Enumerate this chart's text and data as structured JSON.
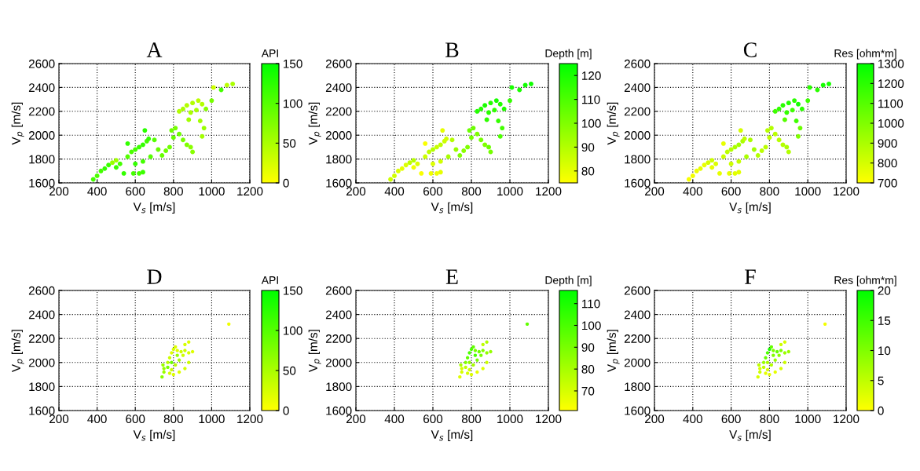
{
  "chart_data": [
    {
      "type": "scatter",
      "title": "A",
      "xlabel": "V$_{s}$ [m/s]",
      "ylabel": "V$_{p}$ [m/s]",
      "clabel": "API",
      "xlim": [
        200,
        1200
      ],
      "xticks": [
        200,
        400,
        600,
        800,
        1000,
        1200
      ],
      "ylim": [
        1600,
        2600
      ],
      "yticks": [
        1600,
        1800,
        2000,
        2200,
        2400,
        2600
      ],
      "grid": true,
      "marker": "circle",
      "clim": [
        0,
        150
      ],
      "cticks": [
        0,
        50,
        100,
        150
      ],
      "x": [
        380,
        400,
        420,
        440,
        460,
        480,
        500,
        520,
        540,
        500,
        560,
        580,
        600,
        620,
        640,
        660,
        560,
        650,
        670,
        700,
        590,
        620,
        640,
        600,
        640,
        680,
        720,
        740,
        760,
        780,
        800,
        810,
        790,
        830,
        850,
        870,
        890,
        900,
        830,
        850,
        870,
        900,
        930,
        950,
        920,
        890,
        880,
        940,
        960,
        950,
        970,
        1000,
        1010,
        1050,
        1080,
        1110
      ],
      "values": [
        1630,
        1660,
        1700,
        1720,
        1750,
        1770,
        1790,
        1760,
        1680,
        1730,
        1820,
        1860,
        1880,
        1900,
        1920,
        1950,
        1930,
        2040,
        1970,
        1960,
        1680,
        1680,
        1690,
        1760,
        1780,
        1820,
        1880,
        1830,
        1870,
        1900,
        1980,
        2060,
        2040,
        2010,
        1960,
        1920,
        1900,
        1860,
        2200,
        2220,
        2250,
        2270,
        2290,
        2260,
        2210,
        2190,
        2130,
        2120,
        2060,
        1990,
        2220,
        2290,
        2400,
        2380,
        2420,
        2430
      ],
      "cvalues": [
        110,
        105,
        110,
        120,
        115,
        60,
        55,
        110,
        120,
        115,
        100,
        105,
        110,
        115,
        120,
        110,
        120,
        125,
        120,
        100,
        110,
        110,
        115,
        120,
        110,
        100,
        90,
        90,
        85,
        85,
        90,
        80,
        85,
        85,
        80,
        75,
        70,
        70,
        45,
        50,
        45,
        45,
        40,
        45,
        50,
        50,
        55,
        55,
        60,
        55,
        70,
        80,
        30,
        110,
        40,
        50
      ]
    },
    {
      "type": "scatter",
      "title": "B",
      "xlabel": "V$_{s}$ [m/s]",
      "ylabel": "V$_{p}$ [m/s]",
      "clabel": "Depth [m]",
      "xlim": [
        200,
        1200
      ],
      "xticks": [
        200,
        400,
        600,
        800,
        1000,
        1200
      ],
      "ylim": [
        1600,
        2600
      ],
      "yticks": [
        1600,
        1800,
        2000,
        2200,
        2400,
        2600
      ],
      "grid": true,
      "marker": "circle",
      "clim": [
        75,
        125
      ],
      "cticks": [
        80,
        90,
        100,
        110,
        120
      ],
      "x": [
        380,
        400,
        420,
        440,
        460,
        480,
        500,
        520,
        540,
        500,
        560,
        580,
        600,
        620,
        640,
        660,
        560,
        650,
        670,
        700,
        590,
        620,
        640,
        600,
        640,
        680,
        720,
        740,
        760,
        780,
        800,
        810,
        790,
        830,
        850,
        870,
        890,
        900,
        830,
        850,
        870,
        900,
        930,
        950,
        920,
        890,
        880,
        940,
        960,
        950,
        970,
        1000,
        1010,
        1050,
        1080,
        1110
      ],
      "values": [
        1630,
        1660,
        1700,
        1720,
        1750,
        1770,
        1790,
        1760,
        1680,
        1730,
        1820,
        1860,
        1880,
        1900,
        1920,
        1950,
        1930,
        2040,
        1970,
        1960,
        1680,
        1680,
        1690,
        1760,
        1780,
        1820,
        1880,
        1830,
        1870,
        1900,
        1980,
        2060,
        2040,
        2010,
        1960,
        1920,
        1900,
        1860,
        2200,
        2220,
        2250,
        2270,
        2290,
        2260,
        2210,
        2190,
        2130,
        2120,
        2060,
        1990,
        2220,
        2290,
        2400,
        2380,
        2420,
        2430
      ],
      "cvalues": [
        85,
        84,
        82,
        80,
        82,
        88,
        90,
        82,
        76,
        78,
        85,
        88,
        90,
        86,
        88,
        85,
        76,
        80,
        84,
        90,
        78,
        78,
        80,
        82,
        84,
        92,
        95,
        100,
        98,
        100,
        102,
        104,
        104,
        100,
        102,
        100,
        104,
        102,
        118,
        118,
        120,
        118,
        120,
        118,
        116,
        117,
        116,
        115,
        112,
        110,
        118,
        115,
        120,
        120,
        122,
        122
      ]
    },
    {
      "type": "scatter",
      "title": "C",
      "xlabel": "V$_{s}$ [m/s]",
      "ylabel": "V$_{p}$ [m/s]",
      "clabel": "Res [ohm*m]",
      "xlim": [
        200,
        1200
      ],
      "xticks": [
        200,
        400,
        600,
        800,
        1000,
        1200
      ],
      "ylim": [
        1600,
        2600
      ],
      "yticks": [
        1600,
        1800,
        2000,
        2200,
        2400,
        2600
      ],
      "grid": true,
      "marker": "circle",
      "clim": [
        700,
        1300
      ],
      "cticks": [
        700,
        800,
        900,
        1000,
        1100,
        1200,
        1300
      ],
      "x": [
        380,
        400,
        420,
        440,
        460,
        480,
        500,
        520,
        540,
        500,
        560,
        580,
        600,
        620,
        640,
        660,
        560,
        650,
        670,
        700,
        590,
        620,
        640,
        600,
        640,
        680,
        720,
        740,
        760,
        780,
        800,
        810,
        790,
        830,
        850,
        870,
        890,
        900,
        830,
        850,
        870,
        900,
        930,
        950,
        920,
        890,
        880,
        940,
        960,
        950,
        970,
        1000,
        1010,
        1050,
        1080,
        1110
      ],
      "values": [
        1630,
        1660,
        1700,
        1720,
        1750,
        1770,
        1790,
        1760,
        1680,
        1730,
        1820,
        1860,
        1880,
        1900,
        1920,
        1950,
        1930,
        2040,
        1970,
        1960,
        1680,
        1680,
        1690,
        1760,
        1780,
        1820,
        1880,
        1830,
        1870,
        1900,
        1980,
        2060,
        2040,
        2010,
        1960,
        1920,
        1900,
        1860,
        2200,
        2220,
        2250,
        2270,
        2290,
        2260,
        2210,
        2190,
        2130,
        2120,
        2060,
        1990,
        2220,
        2290,
        2400,
        2380,
        2420,
        2430
      ],
      "cvalues": [
        720,
        730,
        740,
        760,
        750,
        800,
        820,
        780,
        760,
        760,
        820,
        860,
        880,
        900,
        920,
        900,
        760,
        800,
        850,
        900,
        760,
        770,
        770,
        820,
        840,
        900,
        920,
        880,
        860,
        860,
        850,
        880,
        870,
        860,
        870,
        880,
        900,
        880,
        1150,
        1180,
        1200,
        1220,
        1200,
        1250,
        1150,
        1180,
        1100,
        1150,
        1050,
        1000,
        1200,
        1150,
        1200,
        1200,
        1250,
        1250
      ]
    },
    {
      "type": "scatter",
      "title": "D",
      "xlabel": "V$_{s}$ [m/s]",
      "ylabel": "V$_{p}$ [m/s]",
      "clabel": "API",
      "xlim": [
        200,
        1200
      ],
      "xticks": [
        200,
        400,
        600,
        800,
        1000,
        1200
      ],
      "ylim": [
        1600,
        2600
      ],
      "yticks": [
        1600,
        1800,
        2000,
        2200,
        2400,
        2600
      ],
      "grid": true,
      "marker": "circle",
      "clim": [
        0,
        150
      ],
      "cticks": [
        0,
        50,
        100,
        150
      ],
      "x": [
        740,
        750,
        745,
        770,
        780,
        790,
        800,
        810,
        820,
        840,
        860,
        880,
        900,
        860,
        880,
        850,
        830,
        810,
        790,
        780,
        800,
        830,
        860,
        880,
        770,
        790,
        750,
        820,
        1090
      ],
      "values": [
        1880,
        1920,
        1980,
        2000,
        2040,
        2080,
        2110,
        2130,
        2100,
        2090,
        2100,
        2080,
        2090,
        2150,
        2170,
        2060,
        2020,
        1980,
        1940,
        1910,
        1900,
        1920,
        1950,
        2000,
        1960,
        2000,
        1950,
        2060,
        2320
      ],
      "cvalues": [
        70,
        60,
        60,
        40,
        30,
        20,
        25,
        20,
        20,
        30,
        30,
        25,
        20,
        25,
        20,
        30,
        50,
        40,
        30,
        25,
        20,
        20,
        25,
        30,
        80,
        90,
        60,
        60,
        10
      ]
    },
    {
      "type": "scatter",
      "title": "E",
      "xlabel": "V$_{s}$ [m/s]",
      "ylabel": "V$_{p}$ [m/s]",
      "clabel": "Depth [m]",
      "xlim": [
        200,
        1200
      ],
      "xticks": [
        200,
        400,
        600,
        800,
        1000,
        1200
      ],
      "ylim": [
        1600,
        2600
      ],
      "yticks": [
        1600,
        1800,
        2000,
        2200,
        2400,
        2600
      ],
      "grid": true,
      "marker": "circle",
      "clim": [
        61,
        116
      ],
      "cticks": [
        70,
        80,
        90,
        100,
        110
      ],
      "x": [
        740,
        750,
        745,
        770,
        780,
        790,
        800,
        810,
        820,
        840,
        860,
        880,
        900,
        860,
        880,
        850,
        830,
        810,
        790,
        780,
        800,
        830,
        860,
        880,
        770,
        790,
        750,
        820,
        1090
      ],
      "values": [
        1880,
        1920,
        1980,
        2000,
        2040,
        2080,
        2110,
        2130,
        2100,
        2090,
        2100,
        2080,
        2090,
        2150,
        2170,
        2060,
        2020,
        1980,
        1940,
        1910,
        1900,
        1920,
        1950,
        2000,
        1960,
        2000,
        1950,
        2060,
        2320
      ],
      "cvalues": [
        68,
        70,
        80,
        88,
        95,
        100,
        100,
        95,
        90,
        92,
        88,
        85,
        84,
        75,
        78,
        90,
        90,
        80,
        72,
        70,
        68,
        66,
        68,
        72,
        75,
        86,
        70,
        100,
        95
      ]
    },
    {
      "type": "scatter",
      "title": "F",
      "xlabel": "V$_{s}$ [m/s]",
      "ylabel": "V$_{p}$ [m/s]",
      "clabel": "Res [ohm*m]",
      "xlim": [
        200,
        1200
      ],
      "xticks": [
        200,
        400,
        600,
        800,
        1000,
        1200
      ],
      "ylim": [
        1600,
        2600
      ],
      "yticks": [
        1600,
        1800,
        2000,
        2200,
        2400,
        2600
      ],
      "grid": true,
      "marker": "circle",
      "clim": [
        0,
        20
      ],
      "cticks": [
        0,
        5,
        10,
        15,
        20
      ],
      "x": [
        740,
        750,
        745,
        770,
        780,
        790,
        800,
        810,
        820,
        840,
        860,
        880,
        900,
        860,
        880,
        850,
        830,
        810,
        790,
        780,
        800,
        830,
        860,
        880,
        770,
        790,
        750,
        820,
        1090
      ],
      "values": [
        1880,
        1920,
        1980,
        2000,
        2040,
        2080,
        2110,
        2130,
        2100,
        2090,
        2100,
        2080,
        2090,
        2150,
        2170,
        2060,
        2020,
        1980,
        1940,
        1910,
        1900,
        1920,
        1950,
        2000,
        1960,
        2000,
        1950,
        2060,
        2320
      ],
      "cvalues": [
        3,
        4,
        5,
        8,
        12,
        14,
        18,
        12,
        10,
        12,
        10,
        8,
        8,
        4,
        3,
        9,
        8,
        6,
        3,
        2,
        2,
        2,
        3,
        4,
        5,
        7,
        3,
        10,
        1
      ]
    }
  ]
}
